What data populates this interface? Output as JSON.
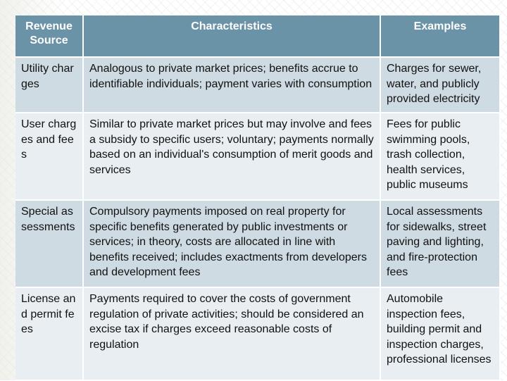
{
  "table": {
    "headers": [
      "Revenue Source",
      "Characteristics",
      "Examples"
    ],
    "rows": [
      {
        "source": "Utility charges",
        "characteristics": "Analogous to private market prices; benefits accrue to identifiable individuals; payment varies with consumption",
        "examples": "Charges for sewer, water, and publicly provided electricity"
      },
      {
        "source": "User charges and fees",
        "characteristics": "Similar to private market prices but may involve and fees a subsidy to specific users; voluntary; payments normally based on an individual's consumption of merit goods and services",
        "examples": "Fees for public swimming pools, trash collection, health services, public museums"
      },
      {
        "source": "Special assessments",
        "characteristics": "Compulsory payments imposed on real property for specific benefits generated by public investments or services; in theory, costs are allocated in line with benefits received; includes exactments from developers and development fees",
        "examples": "Local assessments for sidewalks, street paving and lighting, and fire-protection fees"
      },
      {
        "source": "License and permit fees",
        "characteristics": "Payments required to cover the costs of government regulation of private activities; should be considered an excise tax if charges exceed reasonable costs of regulation",
        "examples": "Automobile inspection fees, building permit and inspection charges, professional licenses"
      }
    ]
  }
}
